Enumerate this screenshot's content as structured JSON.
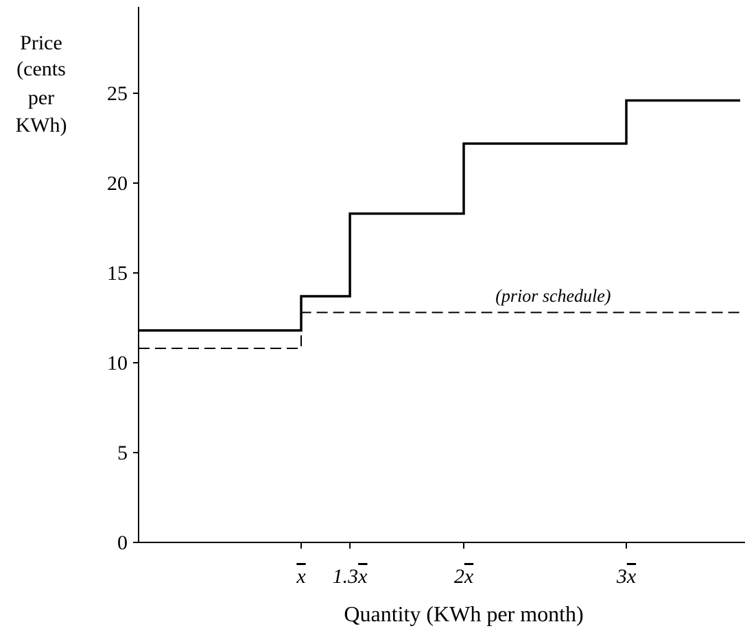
{
  "chart_data": {
    "type": "line",
    "title": "",
    "ylabel": [
      "Price",
      "(cents",
      "per",
      "KWh)"
    ],
    "xlabel": "Quantity (KWh per month)",
    "ylim": [
      0,
      30
    ],
    "xlim": [
      0,
      3.7
    ],
    "y_ticks": [
      0,
      5,
      10,
      15,
      20,
      25
    ],
    "x_ticks": [
      {
        "value": 1.0,
        "prefix": "",
        "symbol": "x"
      },
      {
        "value": 1.3,
        "prefix": "1.3",
        "symbol": "x"
      },
      {
        "value": 2.0,
        "prefix": "2",
        "symbol": "x"
      },
      {
        "value": 3.0,
        "prefix": "3",
        "symbol": "x"
      }
    ],
    "series": [
      {
        "style": "solid",
        "steps": [
          {
            "x_start": 0,
            "x_end": 1.0,
            "price": 11.8
          },
          {
            "x_start": 1.0,
            "x_end": 1.3,
            "price": 13.7
          },
          {
            "x_start": 1.3,
            "x_end": 2.0,
            "price": 18.3
          },
          {
            "x_start": 2.0,
            "x_end": 3.0,
            "price": 22.2
          },
          {
            "x_start": 3.0,
            "x_end": 3.7,
            "price": 24.6
          }
        ]
      },
      {
        "style": "dashed",
        "steps": [
          {
            "x_start": 0,
            "x_end": 1.0,
            "price": 10.8
          },
          {
            "x_start": 1.0,
            "x_end": 3.7,
            "price": 12.8
          }
        ]
      }
    ],
    "annotations": [
      {
        "text": "(prior schedule)",
        "x": 2.55,
        "y": 13.4
      }
    ],
    "grid": false,
    "legend": "none"
  }
}
